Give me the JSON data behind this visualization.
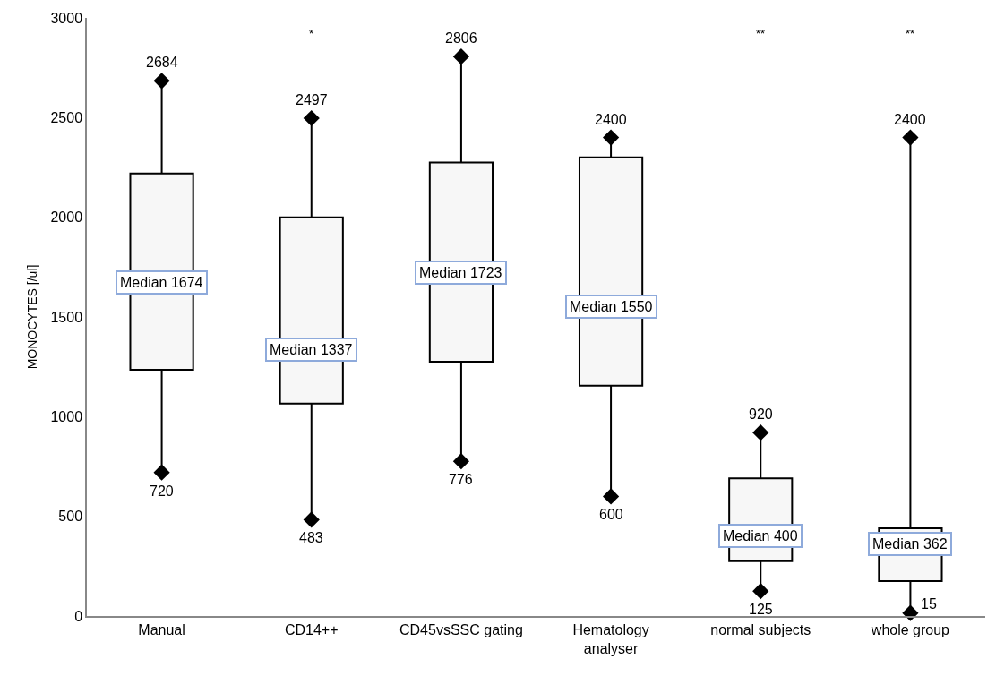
{
  "chart_data": {
    "type": "box",
    "ylabel": "MONOCYTES [/ul]",
    "categories": [
      "Manual",
      "CD14++",
      "CD45vsSSC gating",
      "Hematology analyser",
      "normal subjects",
      "whole group"
    ],
    "boxes": [
      {
        "low": 720,
        "q1": 1235,
        "median": 1674,
        "q3": 2220,
        "high": 2684
      },
      {
        "low": 483,
        "q1": 1065,
        "median": 1337,
        "q3": 2000,
        "high": 2497
      },
      {
        "low": 776,
        "q1": 1275,
        "median": 1723,
        "q3": 2275,
        "high": 2806
      },
      {
        "low": 600,
        "q1": 1155,
        "median": 1550,
        "q3": 2300,
        "high": 2400
      },
      {
        "low": 125,
        "q1": 275,
        "median": 400,
        "q3": 690,
        "high": 920
      },
      {
        "low": 15,
        "q1": 175,
        "median": 362,
        "q3": 440,
        "high": 2400
      }
    ],
    "color": "#f7f7f7",
    "marker": "diamond",
    "ylim": [
      0,
      3000
    ],
    "yticks": [
      0,
      500,
      1000,
      1500,
      2000,
      2500,
      3000
    ],
    "grid": false,
    "annotations": [
      {
        "text": "2684",
        "x": "Manual",
        "y": 2684
      },
      {
        "text": "720",
        "x": "Manual",
        "y": 720
      },
      {
        "text": "Median 1674",
        "x": "Manual",
        "y": 1674
      },
      {
        "text": "2497",
        "x": "CD14++",
        "y": 2497
      },
      {
        "text": "483",
        "x": "CD14++",
        "y": 483
      },
      {
        "text": "Median 1337",
        "x": "CD14++",
        "y": 1337
      },
      {
        "text": "2806",
        "x": "CD45vsSSC gating",
        "y": 2806
      },
      {
        "text": "776",
        "x": "CD45vsSSC gating",
        "y": 776
      },
      {
        "text": "Median 1723",
        "x": "CD45vsSSC gating",
        "y": 1723
      },
      {
        "text": "2400",
        "x": "Hematology analyser",
        "y": 2400
      },
      {
        "text": "600",
        "x": "Hematology analyser",
        "y": 600
      },
      {
        "text": "Median 1550",
        "x": "Hematology analyser",
        "y": 1550
      },
      {
        "text": "920",
        "x": "normal subjects",
        "y": 920
      },
      {
        "text": "125",
        "x": "normal subjects",
        "y": 125
      },
      {
        "text": "Median 400",
        "x": "normal subjects",
        "y": 400
      },
      {
        "text": "2400",
        "x": "whole group",
        "y": 2400
      },
      {
        "text": "15",
        "x": "whole group",
        "y": 15
      },
      {
        "text": "Median 362",
        "x": "whole group",
        "y": 362
      }
    ],
    "value_labels": [
      null,
      "*",
      null,
      null,
      "**",
      "**"
    ]
  }
}
